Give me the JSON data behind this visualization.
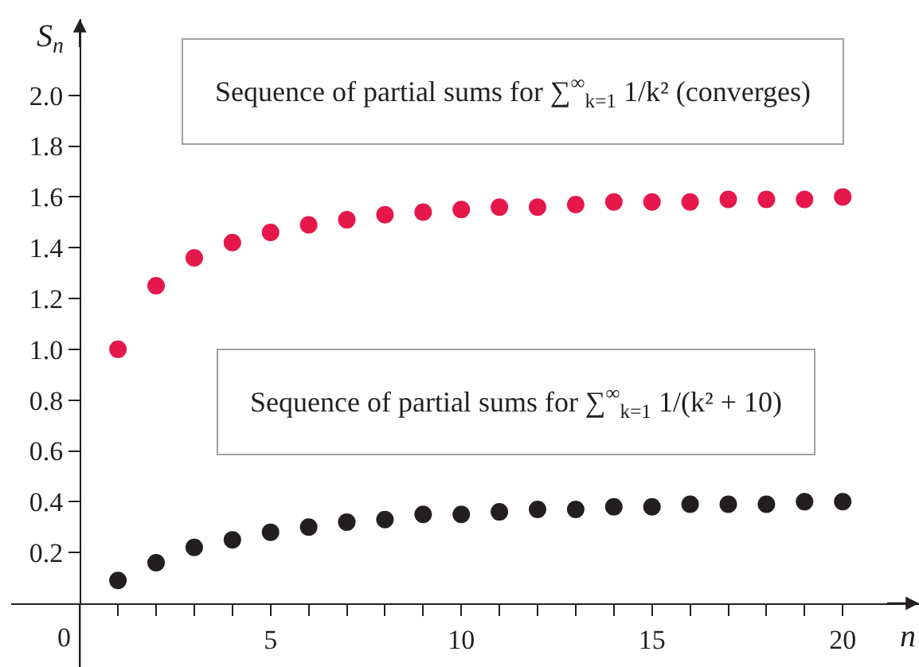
{
  "chart_data": {
    "type": "scatter",
    "xlabel": "n",
    "ylabel": "S$_{n}$",
    "annotations": [
      "Sequence of partial sums for ∑$^{∞}$$_{k=1}$ 1/k² (converges)",
      "Sequence of partial sums for ∑$^{∞}$$_{k=1}$ 1/(k² + 10)"
    ],
    "x": [
      1,
      2,
      3,
      4,
      5,
      6,
      7,
      8,
      9,
      10,
      11,
      12,
      13,
      14,
      15,
      16,
      17,
      18,
      19,
      20
    ],
    "series": [
      {
        "color": "#e5174b",
        "values": [
          1.0,
          1.25,
          1.36,
          1.42,
          1.46,
          1.49,
          1.51,
          1.53,
          1.54,
          1.55,
          1.56,
          1.56,
          1.57,
          1.58,
          1.58,
          1.58,
          1.59,
          1.59,
          1.59,
          1.6
        ]
      },
      {
        "color": "#231f20",
        "values": [
          0.09,
          0.16,
          0.22,
          0.25,
          0.28,
          0.3,
          0.32,
          0.33,
          0.35,
          0.35,
          0.36,
          0.37,
          0.37,
          0.38,
          0.38,
          0.39,
          0.39,
          0.39,
          0.4,
          0.4
        ]
      }
    ],
    "xlim": [
      -1.8,
      22
    ],
    "ylim": [
      0,
      2.3
    ],
    "xticks": [
      {
        "value": 0,
        "label": "0"
      },
      {
        "value": 1,
        "label": null
      },
      {
        "value": 2,
        "label": null
      },
      {
        "value": 3,
        "label": null
      },
      {
        "value": 4,
        "label": null
      },
      5,
      {
        "value": 6,
        "label": null
      },
      {
        "value": 7,
        "label": null
      },
      {
        "value": 8,
        "label": null
      },
      {
        "value": 9,
        "label": null
      },
      10,
      {
        "value": 11,
        "label": null
      },
      {
        "value": 12,
        "label": null
      },
      {
        "value": 13,
        "label": null
      },
      {
        "value": 14,
        "label": null
      },
      15,
      {
        "value": 16,
        "label": null
      },
      {
        "value": 17,
        "label": null
      },
      {
        "value": 18,
        "label": null
      },
      {
        "value": 19,
        "label": null
      },
      20
    ],
    "yticks": [
      0.2,
      0.4,
      0.6,
      0.8,
      {
        "value": 1,
        "label": "1.0"
      },
      1.2,
      1.4,
      1.6,
      1.8,
      {
        "value": 2,
        "label": "2.0"
      }
    ],
    "marker": "circle"
  }
}
